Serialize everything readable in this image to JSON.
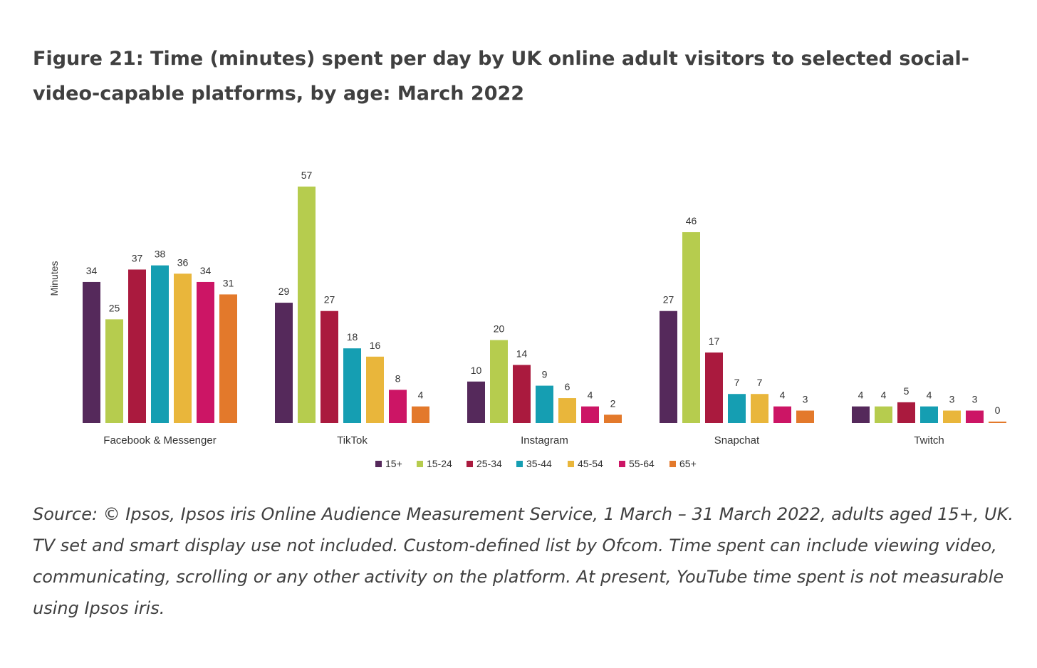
{
  "figure": {
    "title": "Figure 21: Time (minutes) spent per day by UK online adult visitors to selected social-video-capable platforms, by age: March 2022",
    "source": "Source: © Ipsos, Ipsos iris Online Audience Measurement Service, 1 March – 31 March 2022, adults aged 15+, UK. TV set and smart display use not included. Custom-defined list by Ofcom. Time spent can include viewing video, communicating, scrolling or any other activity on the platform. At present, YouTube time spent is not measurable using Ipsos iris."
  },
  "chart_data": {
    "type": "bar",
    "title": "",
    "xlabel": "",
    "ylabel": "Minutes",
    "ylim": [
      0,
      60
    ],
    "grid": false,
    "legend_position": "bottom",
    "categories": [
      "Facebook & Messenger",
      "TikTok",
      "Instagram",
      "Snapchat",
      "Twitch"
    ],
    "series": [
      {
        "name": "15+",
        "color": "#55295b",
        "values": [
          34,
          29,
          10,
          27,
          4
        ]
      },
      {
        "name": "15-24",
        "color": "#b6cc4e",
        "values": [
          25,
          57,
          20,
          46,
          4
        ]
      },
      {
        "name": "25-34",
        "color": "#aa1a3e",
        "values": [
          37,
          27,
          14,
          17,
          5
        ]
      },
      {
        "name": "35-44",
        "color": "#159eb2",
        "values": [
          38,
          18,
          9,
          7,
          4
        ]
      },
      {
        "name": "45-54",
        "color": "#e9b63b",
        "values": [
          36,
          16,
          6,
          7,
          3
        ]
      },
      {
        "name": "55-64",
        "color": "#cc1565",
        "values": [
          34,
          8,
          4,
          4,
          3
        ]
      },
      {
        "name": "65+",
        "color": "#e3792b",
        "values": [
          31,
          4,
          2,
          3,
          0
        ]
      }
    ]
  }
}
